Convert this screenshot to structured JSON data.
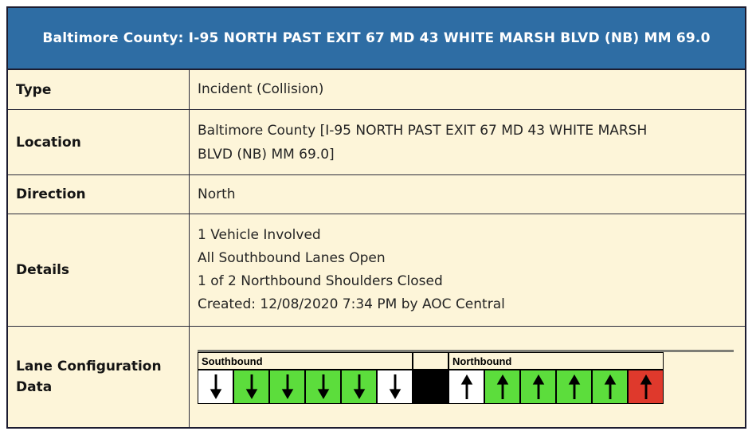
{
  "title": "Baltimore County: I-95 NORTH PAST EXIT 67 MD 43 WHITE MARSH BLVD (NB) MM 69.0",
  "rows": [
    {
      "label": "Type",
      "value": "Incident (Collision)"
    },
    {
      "label": "Location",
      "value": "Baltimore County [I-95 NORTH PAST EXIT 67 MD 43 WHITE MARSH BLVD (NB) MM 69.0]",
      "lines": [
        "Baltimore County [I-95 NORTH PAST EXIT 67 MD 43 WHITE MARSH",
        "BLVD (NB) MM 69.0]"
      ]
    },
    {
      "label": "Direction",
      "value": "North"
    },
    {
      "label": "Details",
      "lines": [
        "1 Vehicle Involved",
        "All Southbound Lanes Open",
        "1 of 2 Northbound Shoulders Closed",
        "Created: 12/08/2020 7:34 PM by AOC Central"
      ]
    },
    {
      "label": "Lane Configuration Data"
    }
  ],
  "lane_configuration": {
    "southbound_label": "Southbound",
    "northbound_label": "Northbound",
    "cells": [
      {
        "group": "southbound",
        "arrow": "down",
        "state": "shoulder-open",
        "color": "#ffffff"
      },
      {
        "group": "southbound",
        "arrow": "down",
        "state": "lane-open",
        "color": "#5cdd3c"
      },
      {
        "group": "southbound",
        "arrow": "down",
        "state": "lane-open",
        "color": "#5cdd3c"
      },
      {
        "group": "southbound",
        "arrow": "down",
        "state": "lane-open",
        "color": "#5cdd3c"
      },
      {
        "group": "southbound",
        "arrow": "down",
        "state": "lane-open",
        "color": "#5cdd3c"
      },
      {
        "group": "southbound",
        "arrow": "down",
        "state": "shoulder-open",
        "color": "#ffffff"
      },
      {
        "group": "median",
        "arrow": null,
        "state": "median",
        "color": "#000000"
      },
      {
        "group": "northbound",
        "arrow": "up",
        "state": "shoulder-open",
        "color": "#ffffff"
      },
      {
        "group": "northbound",
        "arrow": "up",
        "state": "lane-open",
        "color": "#5cdd3c"
      },
      {
        "group": "northbound",
        "arrow": "up",
        "state": "lane-open",
        "color": "#5cdd3c"
      },
      {
        "group": "northbound",
        "arrow": "up",
        "state": "lane-open",
        "color": "#5cdd3c"
      },
      {
        "group": "northbound",
        "arrow": "up",
        "state": "lane-open",
        "color": "#5cdd3c"
      },
      {
        "group": "northbound",
        "arrow": "up",
        "state": "shoulder-closed",
        "color": "#df392c"
      }
    ]
  },
  "colors": {
    "title_bg": "#2e6da4",
    "title_text": "#ffffff",
    "panel_bg": "#fdf5d9",
    "border_dark": "#1c1c30",
    "lane_border": "#000000",
    "lane_open_green": "#5cdd3c",
    "shoulder_closed_red": "#df392c",
    "shoulder_open_white": "#ffffff",
    "median_black": "#000000",
    "diagram_top_gray": "#7e7e76",
    "arrow_black": "#000000"
  }
}
